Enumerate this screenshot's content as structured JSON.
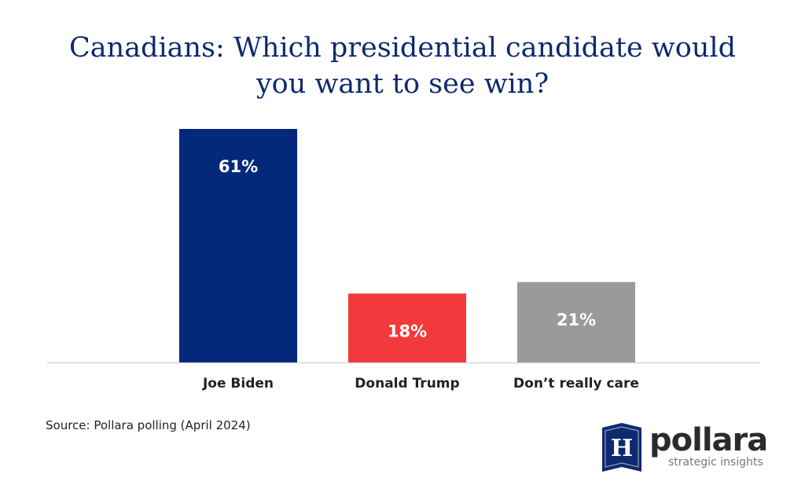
{
  "title": "Canadians: Which presidential candidate would you want to see win?",
  "title_lines": [
    "Canadians: Which presidential candidate would",
    "you want to see win?"
  ],
  "source": "Source: Pollara polling (April 2024)",
  "logo": {
    "mark_letter": "H",
    "wordmark": "pollara",
    "tagline": "strategic insights"
  },
  "colors": {
    "title": "#0d2a6e",
    "biden": "#05297a",
    "trump": "#f23a3c",
    "dont_care": "#9a9a9a",
    "axis": "#d8d8d8",
    "logo_mark": "#0d2a6e"
  },
  "chart_data": {
    "type": "bar",
    "title": "Canadians: Which presidential candidate would you want to see win?",
    "categories": [
      "Joe Biden",
      "Donald Trump",
      "Don’t really care"
    ],
    "values": [
      61,
      18,
      21
    ],
    "labels": [
      "61%",
      "18%",
      "21%"
    ],
    "bar_colors": [
      "#05297a",
      "#f23a3c",
      "#9a9a9a"
    ],
    "ylim": [
      0,
      61
    ],
    "xlabel": "",
    "ylabel": "",
    "grid": false
  }
}
